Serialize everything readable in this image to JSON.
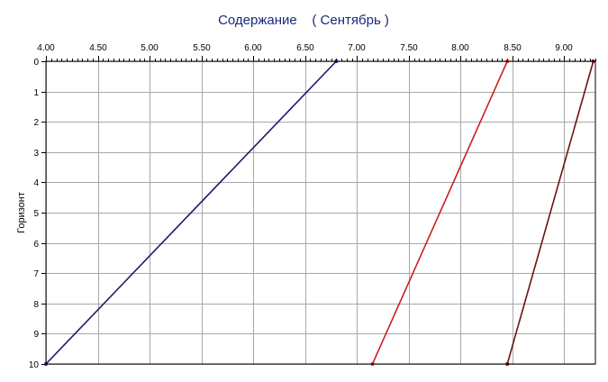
{
  "chart_data": {
    "type": "line",
    "title": "Содержание    ( Сентябрь )",
    "xlabel": "",
    "ylabel": "Горизонт",
    "x_axis_position": "top",
    "y_axis_inverted": true,
    "xlim": [
      4.0,
      9.3
    ],
    "ylim": [
      0,
      10
    ],
    "x_ticks": [
      "4.00",
      "4.50",
      "5.00",
      "5.50",
      "6.00",
      "6.50",
      "7.00",
      "7.50",
      "8.00",
      "8.50",
      "9.00"
    ],
    "y_ticks": [
      "0",
      "1",
      "2",
      "3",
      "4",
      "5",
      "6",
      "7",
      "8",
      "9",
      "10"
    ],
    "grid": true,
    "legend": "none",
    "series": [
      {
        "color": "#1a1a6e",
        "points": [
          {
            "x": 6.8,
            "y": 0
          },
          {
            "x": 4.0,
            "y": 10
          }
        ]
      },
      {
        "color": "#cc1f1f",
        "points": [
          {
            "x": 8.45,
            "y": 0
          },
          {
            "x": 7.15,
            "y": 10
          }
        ]
      },
      {
        "color": "#6e1010",
        "points": [
          {
            "x": 9.28,
            "y": 0
          },
          {
            "x": 8.45,
            "y": 10
          }
        ]
      }
    ]
  }
}
